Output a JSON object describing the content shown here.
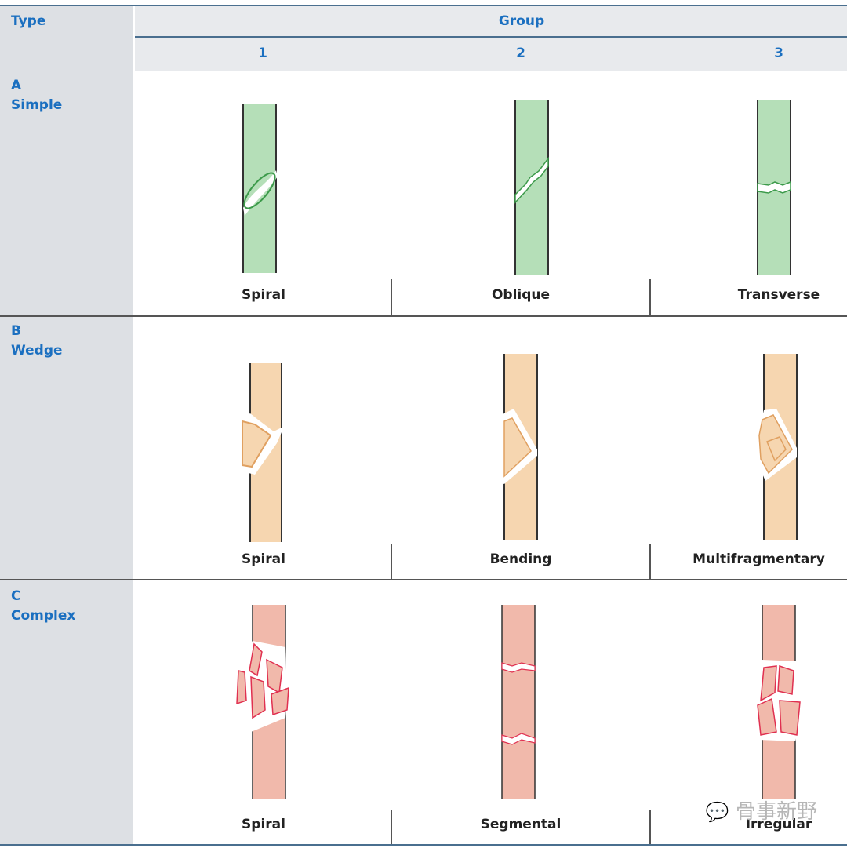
{
  "header": {
    "type_label": "Type",
    "group_label": "Group",
    "group_numbers": [
      "1",
      "2",
      "3"
    ]
  },
  "rows": [
    {
      "letter": "A",
      "name": "Simple",
      "labels": [
        "Spiral",
        "Oblique",
        "Transverse"
      ],
      "color": "#b5dfb8",
      "stroke": "#3c9a4a"
    },
    {
      "letter": "B",
      "name": "Wedge",
      "labels": [
        "Spiral",
        "Bending",
        "Multifragmentary"
      ],
      "color": "#f6d6b0",
      "stroke": "#e0a060"
    },
    {
      "letter": "C",
      "name": "Complex",
      "labels": [
        "Spiral",
        "Segmental",
        "Irregular"
      ],
      "color": "#f1b9ab",
      "stroke": "#e03050"
    }
  ],
  "watermark": "骨事新野"
}
